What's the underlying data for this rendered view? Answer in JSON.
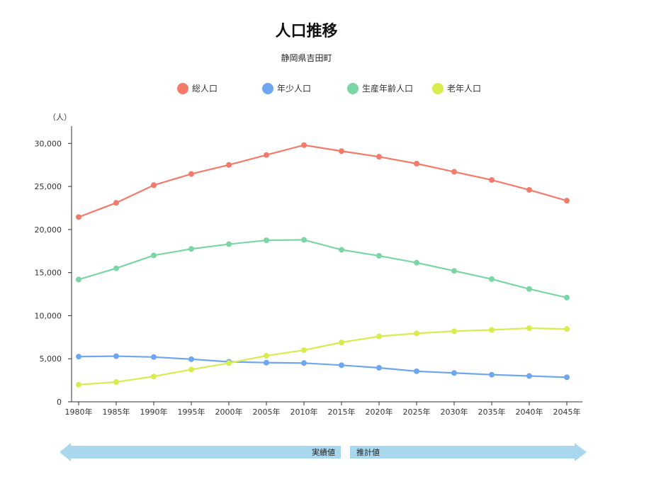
{
  "chart_data": {
    "type": "line",
    "title": "人口推移",
    "subtitle": "静岡県吉田町",
    "ylabel": "（人）",
    "xlabel": "",
    "categories": [
      "1980年",
      "1985年",
      "1990年",
      "1995年",
      "2000年",
      "2005年",
      "2010年",
      "2015年",
      "2020年",
      "2025年",
      "2030年",
      "2035年",
      "2040年",
      "2045年"
    ],
    "ylim": [
      0,
      32000
    ],
    "yticks": [
      0,
      5000,
      10000,
      15000,
      20000,
      25000,
      30000
    ],
    "ytick_labels": [
      "0",
      "5,000",
      "10,000",
      "15,000",
      "20,000",
      "25,000",
      "30,000"
    ],
    "grid": false,
    "legend_position": "top",
    "series": [
      {
        "name": "総人口",
        "color": "#f47a6b",
        "values": [
          21450,
          23100,
          25150,
          26450,
          27500,
          28650,
          29800,
          29100,
          28450,
          27650,
          26700,
          25750,
          24600,
          23350
        ]
      },
      {
        "name": "年少人口",
        "color": "#6ea6f0",
        "values": [
          5250,
          5300,
          5200,
          4950,
          4650,
          4550,
          4500,
          4250,
          3950,
          3550,
          3350,
          3150,
          3000,
          2850
        ]
      },
      {
        "name": "生産年齢人口",
        "color": "#7ad6a3",
        "values": [
          14200,
          15500,
          17000,
          17750,
          18300,
          18750,
          18800,
          17650,
          16950,
          16150,
          15200,
          14250,
          13100,
          12100
        ]
      },
      {
        "name": "老年人口",
        "color": "#d8ec4e",
        "values": [
          2000,
          2300,
          2950,
          3750,
          4500,
          5350,
          6000,
          6900,
          7600,
          7950,
          8200,
          8350,
          8550,
          8450
        ]
      }
    ],
    "period_band": {
      "actual_label": "実績値",
      "estimate_label": "推計値",
      "color": "#a9d8ee"
    }
  }
}
